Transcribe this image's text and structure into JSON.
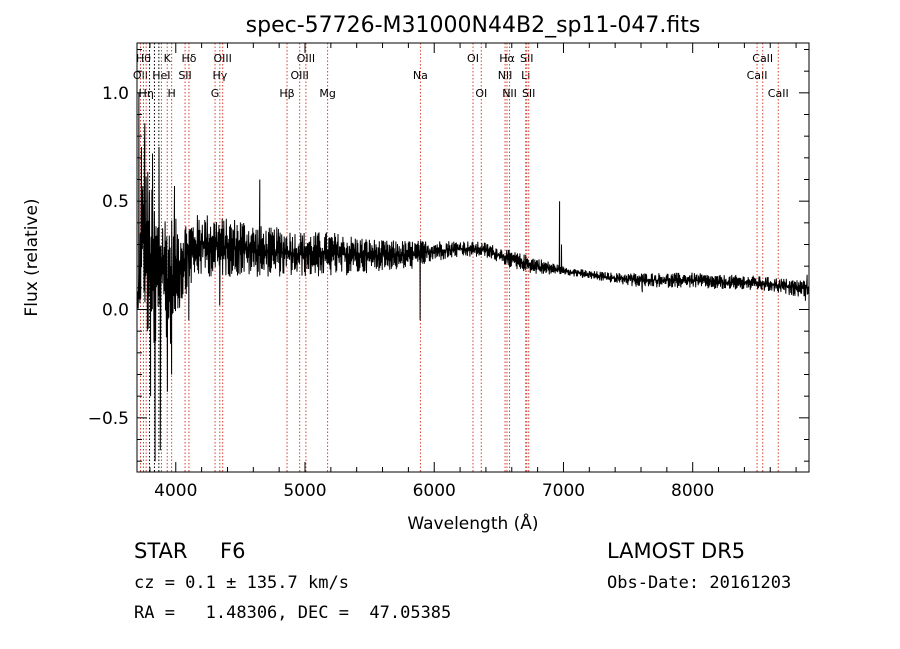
{
  "chart_data": {
    "type": "line",
    "title": "spec-57726-M31000N44B2_sp11-047.fits",
    "xlabel": "Wavelength (Å)",
    "ylabel": "Flux (relative)",
    "xlim": [
      3700,
      8900
    ],
    "ylim": [
      -0.75,
      1.23
    ],
    "xticks": [
      4000,
      5000,
      6000,
      7000,
      8000
    ],
    "yticks": [
      1.0,
      0.5,
      0.0,
      -0.5
    ],
    "ytick_labels": [
      "1.0",
      "0.5",
      "0.0",
      "−0.5"
    ],
    "grid": false,
    "series": [
      {
        "envelope": [
          [
            3700,
            0.0,
            0.0
          ],
          [
            3750,
            0.02,
            0.8
          ],
          [
            3800,
            -0.2,
            0.6
          ],
          [
            3850,
            -0.2,
            0.48
          ],
          [
            3900,
            -0.15,
            0.48
          ],
          [
            3950,
            -0.2,
            0.45
          ],
          [
            4000,
            -0.05,
            0.42
          ],
          [
            4100,
            0.1,
            0.42
          ],
          [
            4200,
            0.15,
            0.45
          ],
          [
            4300,
            0.15,
            0.44
          ],
          [
            4400,
            0.15,
            0.42
          ],
          [
            4500,
            0.15,
            0.43
          ],
          [
            4600,
            0.15,
            0.4
          ],
          [
            4700,
            0.15,
            0.38
          ],
          [
            4800,
            0.15,
            0.38
          ],
          [
            4900,
            0.15,
            0.37
          ],
          [
            5000,
            0.15,
            0.36
          ],
          [
            5200,
            0.15,
            0.36
          ],
          [
            5400,
            0.16,
            0.34
          ],
          [
            5600,
            0.18,
            0.32
          ],
          [
            5800,
            0.18,
            0.32
          ],
          [
            6000,
            0.22,
            0.32
          ],
          [
            6200,
            0.24,
            0.32
          ],
          [
            6400,
            0.24,
            0.31
          ],
          [
            6600,
            0.19,
            0.27
          ],
          [
            6800,
            0.16,
            0.24
          ],
          [
            7000,
            0.16,
            0.2
          ],
          [
            7200,
            0.14,
            0.18
          ],
          [
            7400,
            0.12,
            0.17
          ],
          [
            7600,
            0.1,
            0.17
          ],
          [
            7800,
            0.1,
            0.17
          ],
          [
            8000,
            0.1,
            0.17
          ],
          [
            8200,
            0.09,
            0.16
          ],
          [
            8400,
            0.09,
            0.16
          ],
          [
            8600,
            0.08,
            0.15
          ],
          [
            8800,
            0.06,
            0.14
          ],
          [
            8900,
            0.06,
            0.14
          ]
        ],
        "features": [
          [
            3715,
            1.0
          ],
          [
            3735,
            0.75
          ],
          [
            3760,
            0.86
          ],
          [
            3780,
            -0.1
          ],
          [
            3805,
            -0.4
          ],
          [
            3820,
            0.72
          ],
          [
            3840,
            -0.7
          ],
          [
            3870,
            0.75
          ],
          [
            3880,
            -0.65
          ],
          [
            3935,
            -0.38
          ],
          [
            3968,
            -0.3
          ],
          [
            3990,
            0.57
          ],
          [
            4101,
            -0.05
          ],
          [
            4340,
            0.02
          ],
          [
            4650,
            0.6
          ],
          [
            5891,
            -0.05
          ],
          [
            6970,
            0.5
          ],
          [
            6985,
            0.3
          ],
          [
            7610,
            0.08
          ],
          [
            8872,
            0.04
          ],
          [
            8885,
            0.16
          ]
        ]
      }
    ],
    "lines": [
      {
        "wave": 3727,
        "label": "OII",
        "row": 2,
        "color": "#d64030"
      },
      {
        "wave": 3750,
        "label": "Hθ",
        "row": 1,
        "color": "#d64030"
      },
      {
        "wave": 3771,
        "label": "Hη",
        "row": 3,
        "color": "#d64030"
      },
      {
        "wave": 3797,
        "label": "",
        "row": 0,
        "color": "#000000"
      },
      {
        "wave": 3835,
        "label": "",
        "row": 0,
        "color": "#000000"
      },
      {
        "wave": 3869,
        "label": "",
        "row": 0,
        "color": "#000000"
      },
      {
        "wave": 3889,
        "label": "HeI",
        "row": 2,
        "color": "#d64030"
      },
      {
        "wave": 3934,
        "label": "K",
        "row": 1,
        "color": "#d64030"
      },
      {
        "wave": 3968,
        "label": "H",
        "row": 3,
        "color": "#d64030"
      },
      {
        "wave": 4072,
        "label": "SII",
        "row": 2,
        "color": "#d64030"
      },
      {
        "wave": 4102,
        "label": "Hδ",
        "row": 1,
        "color": "#d64030"
      },
      {
        "wave": 4304,
        "label": "G",
        "row": 3,
        "color": "#d64030"
      },
      {
        "wave": 4341,
        "label": "Hγ",
        "row": 2,
        "color": "#d64030"
      },
      {
        "wave": 4363,
        "label": "OIII",
        "row": 1,
        "color": "#d64030"
      },
      {
        "wave": 4861,
        "label": "Hβ",
        "row": 3,
        "color": "#d64030"
      },
      {
        "wave": 4959,
        "label": "OIII",
        "row": 2,
        "color": "#d64030"
      },
      {
        "wave": 5007,
        "label": "OIII",
        "row": 1,
        "color": "#d64030"
      },
      {
        "wave": 5175,
        "label": "Mg",
        "row": 3,
        "color": "#d64030"
      },
      {
        "wave": 5893,
        "label": "Na",
        "row": 2,
        "color": "#d64030"
      },
      {
        "wave": 6300,
        "label": "OI",
        "row": 1,
        "color": "#d64030"
      },
      {
        "wave": 6364,
        "label": "OI",
        "row": 3,
        "color": "#d64030"
      },
      {
        "wave": 6548,
        "label": "NII",
        "row": 2,
        "color": "#d64030"
      },
      {
        "wave": 6563,
        "label": "Hα",
        "row": 1,
        "color": "#d64030"
      },
      {
        "wave": 6583,
        "label": "NII",
        "row": 3,
        "color": "#d64030"
      },
      {
        "wave": 6708,
        "label": "Li",
        "row": 2,
        "color": "#d64030"
      },
      {
        "wave": 6716,
        "label": "SII",
        "row": 1,
        "color": "#d64030"
      },
      {
        "wave": 6731,
        "label": "SII",
        "row": 3,
        "color": "#d64030"
      },
      {
        "wave": 8498,
        "label": "CaII",
        "row": 2,
        "color": "#d64030"
      },
      {
        "wave": 8542,
        "label": "CaII",
        "row": 1,
        "color": "#d64030"
      },
      {
        "wave": 8662,
        "label": "CaII",
        "row": 3,
        "color": "#d64030"
      }
    ],
    "axis_color": "#000000",
    "line_color": "#000000"
  },
  "info": {
    "class_label": "STAR",
    "subclass": "F6",
    "survey": "LAMOST DR5",
    "redshift": "cz = 0.1 ± 135.7 km/s",
    "obs_date": "Obs-Date: 20161203",
    "coords": "RA =   1.48306, DEC =  47.05385"
  }
}
